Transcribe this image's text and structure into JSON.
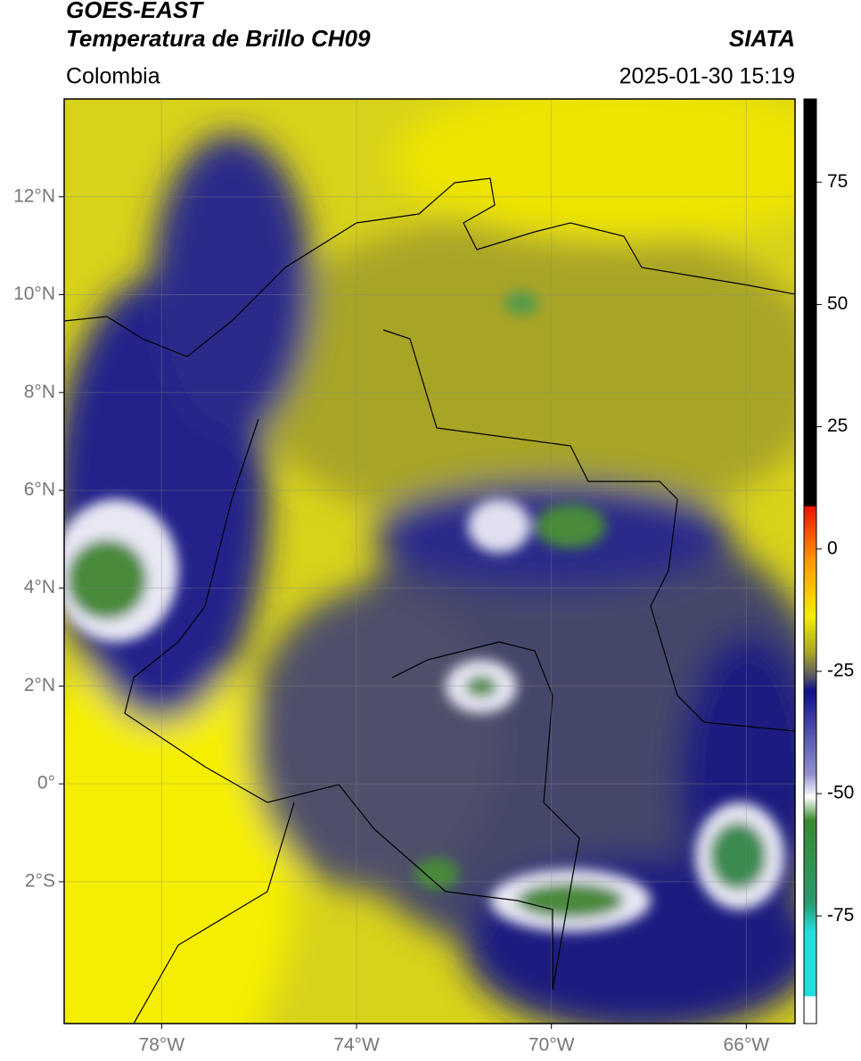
{
  "header": {
    "satellite": "GOES-EAST",
    "product": "Temperatura de Brillo CH09",
    "source": "SIATA",
    "region": "Colombia",
    "timestamp": "2025-01-30 15:19"
  },
  "map": {
    "lon_range": [
      -80,
      -65
    ],
    "lat_range": [
      -4.9,
      14
    ],
    "lon_ticks": [
      {
        "value": -78,
        "label": "78°W"
      },
      {
        "value": -74,
        "label": "74°W"
      },
      {
        "value": -70,
        "label": "70°W"
      },
      {
        "value": -66,
        "label": "66°W"
      }
    ],
    "lat_ticks": [
      {
        "value": 12,
        "label": "12°N"
      },
      {
        "value": 10,
        "label": "10°N"
      },
      {
        "value": 8,
        "label": "8°N"
      },
      {
        "value": 6,
        "label": "6°N"
      },
      {
        "value": 4,
        "label": "4°N"
      },
      {
        "value": 2,
        "label": "2°N"
      },
      {
        "value": 0,
        "label": "0°"
      },
      {
        "value": -2,
        "label": "2°S"
      }
    ]
  },
  "colorbar": {
    "range": [
      -97,
      92
    ],
    "ticks": [
      75,
      50,
      25,
      0,
      -25,
      -50,
      -75
    ]
  }
}
